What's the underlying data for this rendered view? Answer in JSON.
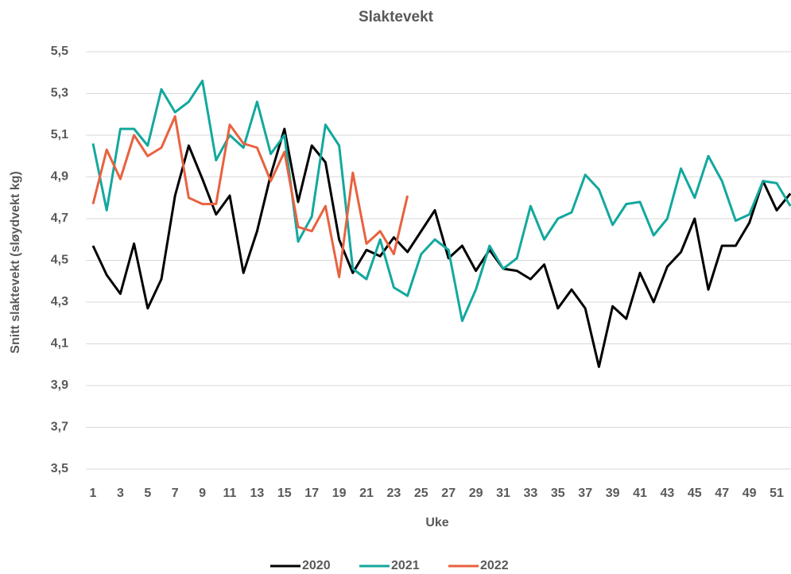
{
  "chart_data": {
    "type": "line",
    "title": "Slaktevekt",
    "y_label": "Snitt slaktevekt (sløydvekt kg)",
    "x_label": "Uke",
    "categories": [
      1,
      null,
      3,
      null,
      5,
      null,
      7,
      null,
      9,
      null,
      11,
      null,
      13,
      null,
      15,
      null,
      17,
      null,
      19,
      null,
      21,
      null,
      23,
      null,
      25,
      null,
      27,
      null,
      29,
      null,
      31,
      null,
      33,
      null,
      35,
      null,
      37,
      null,
      39,
      null,
      41,
      null,
      43,
      null,
      45,
      null,
      47,
      null,
      49,
      null,
      51,
      null
    ],
    "series": [
      {
        "name": "2020",
        "color": "#000000",
        "values": [
          4.57,
          4.43,
          4.34,
          4.58,
          4.27,
          4.41,
          4.81,
          5.05,
          4.89,
          4.72,
          4.81,
          4.44,
          4.64,
          4.91,
          5.13,
          4.78,
          5.05,
          4.97,
          4.6,
          4.44,
          4.55,
          4.52,
          4.61,
          4.54,
          4.64,
          4.74,
          4.51,
          4.57,
          4.45,
          4.55,
          4.46,
          4.45,
          4.41,
          4.48,
          4.27,
          4.36,
          4.27,
          3.99,
          4.28,
          4.22,
          4.44,
          4.3,
          4.47,
          4.54,
          4.7,
          4.36,
          4.57,
          4.57,
          4.68,
          4.88,
          4.74,
          4.82
        ]
      },
      {
        "name": "2021",
        "color": "#13a89e",
        "values": [
          5.06,
          4.74,
          5.13,
          5.13,
          5.05,
          5.32,
          5.21,
          5.26,
          5.36,
          4.98,
          5.1,
          5.04,
          5.26,
          5.01,
          5.1,
          4.59,
          4.71,
          5.15,
          5.05,
          4.46,
          4.41,
          4.6,
          4.37,
          4.33,
          4.53,
          4.6,
          4.55,
          4.21,
          4.36,
          4.57,
          4.46,
          4.51,
          4.76,
          4.6,
          4.7,
          4.73,
          4.91,
          4.84,
          4.67,
          4.77,
          4.78,
          4.62,
          4.7,
          4.94,
          4.8,
          5.0,
          4.88,
          4.69,
          4.72,
          4.88,
          4.87,
          4.76
        ]
      },
      {
        "name": "2022",
        "color": "#e8623f",
        "values": [
          4.77,
          5.03,
          4.89,
          5.1,
          5.0,
          5.04,
          5.19,
          4.8,
          4.77,
          4.77,
          5.15,
          5.06,
          5.04,
          4.88,
          5.02,
          4.66,
          4.64,
          4.76,
          4.42,
          4.92,
          4.58,
          4.64,
          4.53,
          4.81,
          null,
          null,
          null,
          null,
          null,
          null,
          null,
          null,
          null,
          null,
          null,
          null,
          null,
          null,
          null,
          null,
          null,
          null,
          null,
          null,
          null,
          null,
          null,
          null,
          null,
          null,
          null,
          null
        ]
      }
    ],
    "ylim": [
      3.5,
      5.5
    ],
    "yticks": [
      {
        "value": 3.5,
        "label": "3,5"
      },
      {
        "value": 3.7,
        "label": "3,7"
      },
      {
        "value": 3.9,
        "label": "3,9"
      },
      {
        "value": 4.1,
        "label": "4,1"
      },
      {
        "value": 4.3,
        "label": "4,3"
      },
      {
        "value": 4.5,
        "label": "4,5"
      },
      {
        "value": 4.7,
        "label": "4,7"
      },
      {
        "value": 4.9,
        "label": "4,9"
      },
      {
        "value": 5.1,
        "label": "5,1"
      },
      {
        "value": 5.3,
        "label": "5,3"
      },
      {
        "value": 5.5,
        "label": "5,5"
      }
    ],
    "grid": true,
    "legend": "bottom"
  }
}
